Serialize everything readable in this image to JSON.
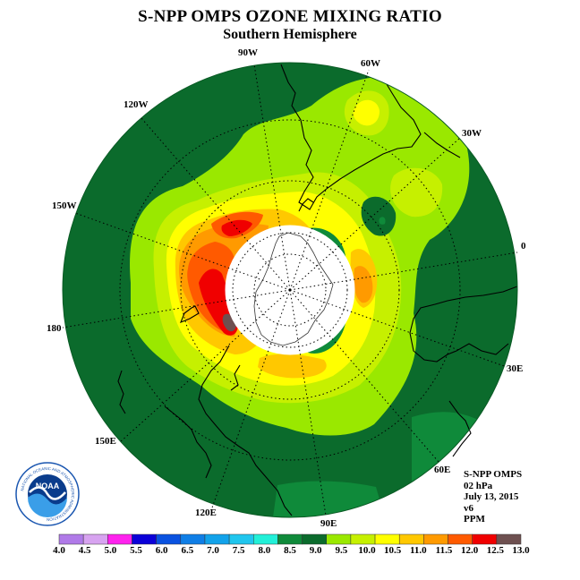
{
  "header": {
    "title": "S-NPP OMPS OZONE MIXING RATIO",
    "subtitle": "Southern Hemisphere"
  },
  "map": {
    "projection": "south polar stereographic",
    "longitude_labels": [
      "90W",
      "60W",
      "30W",
      "0",
      "30E",
      "60E",
      "90E",
      "120E",
      "150E",
      "180",
      "150W",
      "120W"
    ],
    "ocean_color": "#0b6b2c",
    "no_data_color": "#ffffff"
  },
  "info": {
    "instrument": "S-NPP OMPS",
    "level": "02 hPa",
    "date": "July 13, 2015",
    "version": "v6",
    "units": "PPM"
  },
  "legend": {
    "ticks": [
      "4.0",
      "4.5",
      "5.0",
      "5.5",
      "6.0",
      "6.5",
      "7.0",
      "7.5",
      "8.0",
      "8.5",
      "9.0",
      "9.5",
      "10.0",
      "10.5",
      "11.0",
      "11.5",
      "12.0",
      "12.5",
      "13.0"
    ],
    "colors": [
      "#b07ae8",
      "#d7a3f0",
      "#ff22ee",
      "#0b00d8",
      "#0a52e0",
      "#0f7ee6",
      "#12a2ea",
      "#20c6ee",
      "#22f0d8",
      "#0f8a3a",
      "#0b6b2c",
      "#9ae800",
      "#c6f000",
      "#ffff00",
      "#ffc800",
      "#ff9a00",
      "#ff5a00",
      "#f00000",
      "#6e5050"
    ]
  },
  "logo": {
    "name": "NOAA",
    "ring_text": "NATIONAL OCEANIC AND ATMOSPHERIC ADMINISTRATION"
  }
}
